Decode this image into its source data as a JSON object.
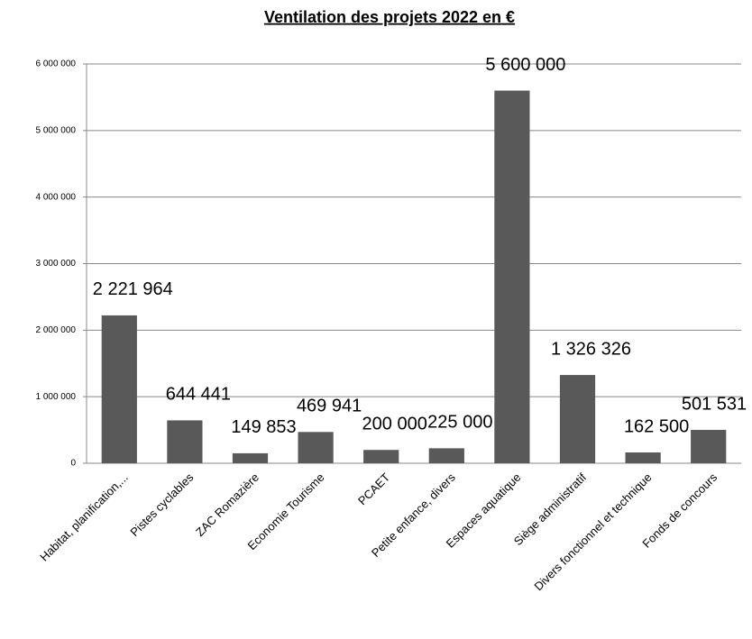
{
  "chart_data": {
    "type": "bar",
    "title": "Ventilation des projets 2022 en €",
    "categories": [
      "Habitat, planification,...",
      "Pistes cyclables",
      "ZAC Romazière",
      "Economie Tourisme",
      "PCAET",
      "Petite enfance, divers",
      "Espaces aquatique",
      "Siège administratif",
      "Divers fonctionnel et technique",
      "Fonds de concours"
    ],
    "values": [
      2221964,
      644441,
      149853,
      469941,
      200000,
      225000,
      5600000,
      1326326,
      162500,
      501531
    ],
    "value_labels": [
      "2 221 964",
      "644 441",
      "149 853",
      "469 941",
      "200 000",
      "225 000",
      "5 600 000",
      "1 326 326",
      "162 500",
      "501 531"
    ],
    "color": "#595959",
    "ylim": [
      0,
      6000000
    ],
    "yticks": [
      0,
      {
        "value": 1000000,
        "label": "1 000 000"
      },
      {
        "value": 2000000,
        "label": "2 000 000"
      },
      {
        "value": 3000000,
        "label": "3 000 000"
      },
      {
        "value": 4000000,
        "label": "4 000 000"
      },
      {
        "value": 5000000,
        "label": "5 000 000"
      },
      {
        "value": 6000000,
        "label": "6 000 000"
      }
    ],
    "grid": true
  }
}
